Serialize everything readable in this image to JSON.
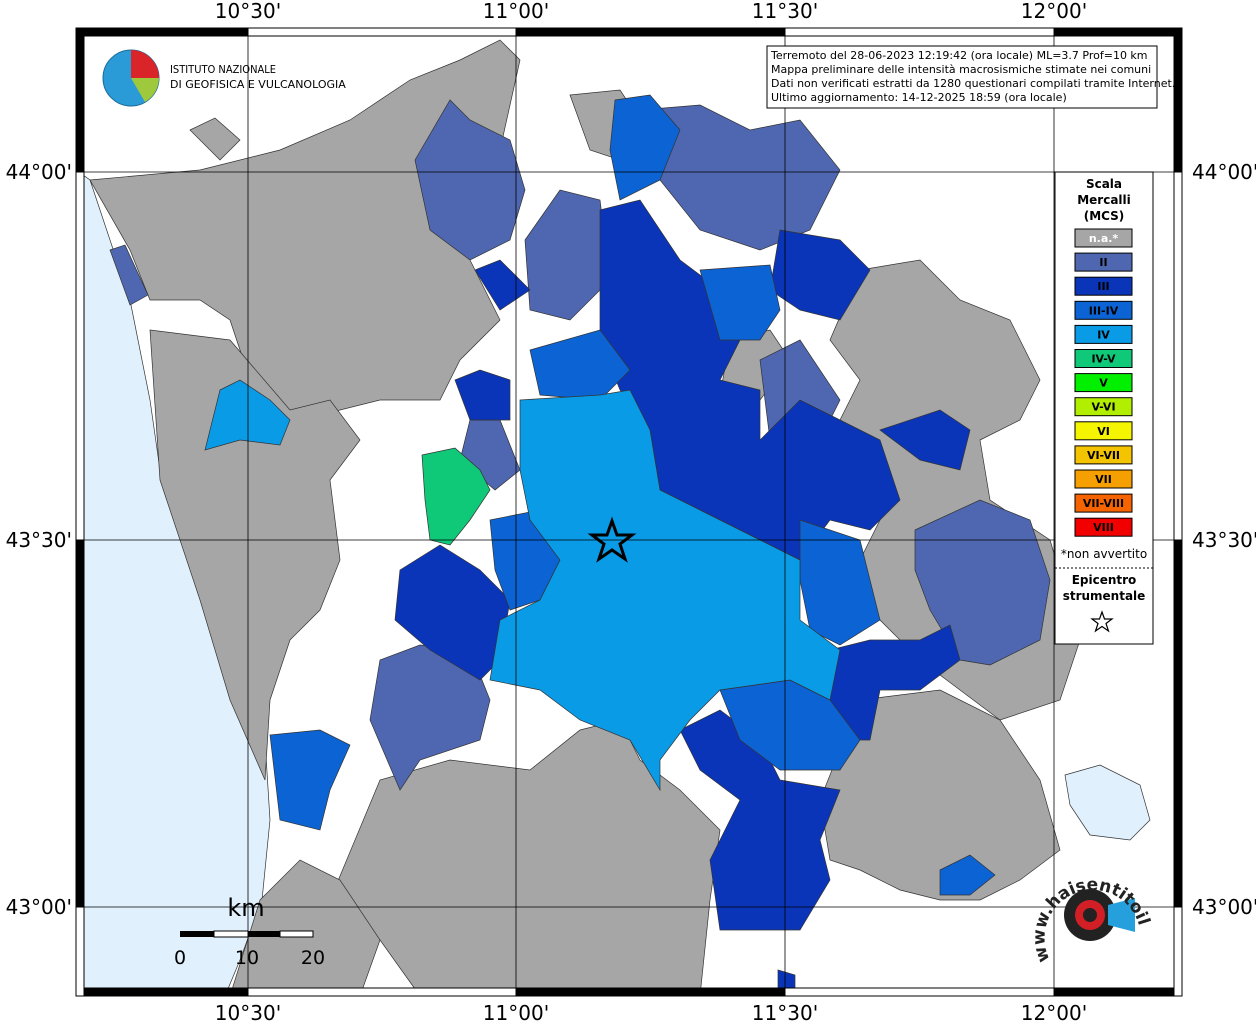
{
  "map": {
    "info_lines": [
      "Terremoto del 28-06-2023 12:19:42 (ora locale) ML=3.7 Prof=10 km",
      "Mappa preliminare delle intensità macrosismiche stimate nei comuni",
      "Dati non verificati estratti da 1280 questionari compilati tramite Internet.",
      "Ultimo aggiornamento: 14-12-2025 18:59 (ora locale)"
    ],
    "lon_labels": [
      "10°30'",
      "11°00'",
      "11°30'",
      "12°00'"
    ],
    "lat_labels": [
      "44°00'",
      "43°30'",
      "43°00'"
    ],
    "logo": [
      "ISTITUTO NAZIONALE",
      "DI GEOFISICA E VULCANOLOGIA"
    ],
    "legend": {
      "title": [
        "Scala",
        "Mercalli",
        "(MCS)"
      ],
      "items": [
        {
          "label": "n.a.*",
          "color": "#a6a6a6"
        },
        {
          "label": "II",
          "color": "#4f67b0"
        },
        {
          "label": "III",
          "color": "#0b35b8"
        },
        {
          "label": "III-IV",
          "color": "#0b63d4"
        },
        {
          "label": "IV",
          "color": "#0a9be6"
        },
        {
          "label": "IV-V",
          "color": "#0fc878"
        },
        {
          "label": "V",
          "color": "#00f000"
        },
        {
          "label": "V-VI",
          "color": "#b2ee00"
        },
        {
          "label": "VI",
          "color": "#f5f500"
        },
        {
          "label": "VI-VII",
          "color": "#f5c400"
        },
        {
          "label": "VII",
          "color": "#f5a000"
        },
        {
          "label": "VII-VIII",
          "color": "#f56400"
        },
        {
          "label": "VIII",
          "color": "#f20000"
        }
      ],
      "note": "*non avvertito",
      "epicenter": [
        "Epicentro",
        "strumentale"
      ]
    },
    "scale": {
      "unit": "km",
      "labels": [
        "0",
        "10",
        "20"
      ]
    },
    "watermark": "www.haisentitoilterremoto.it"
  }
}
